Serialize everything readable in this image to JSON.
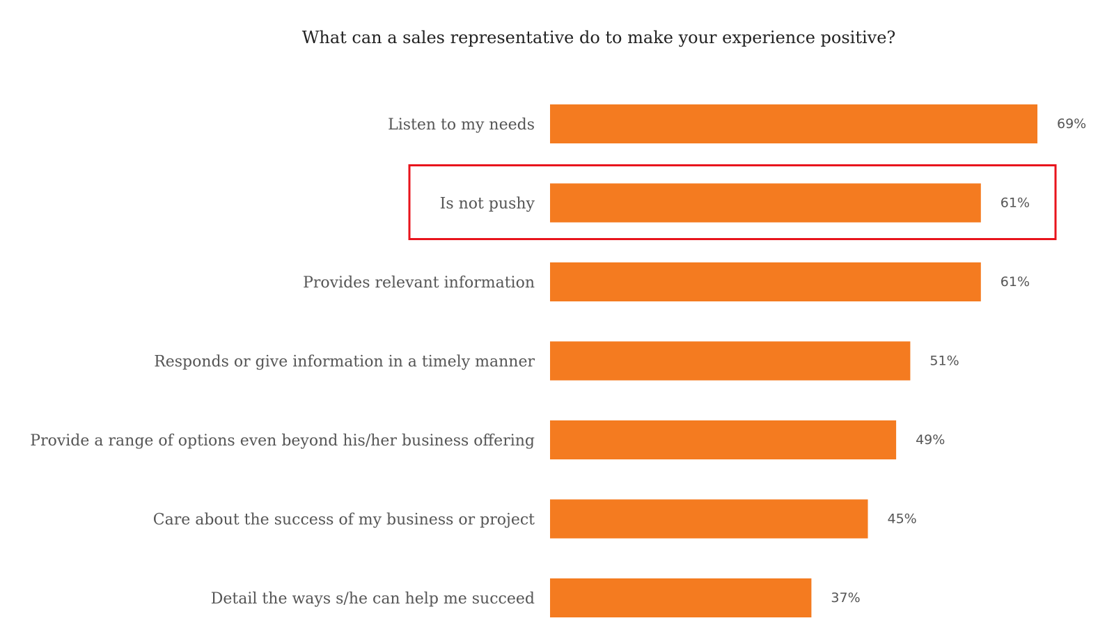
{
  "chart_data": {
    "type": "bar",
    "orientation": "horizontal",
    "title": "What can a sales representative do to make your experience positive?",
    "categories": [
      "Listen to my needs",
      "Is not pushy",
      "Provides relevant information",
      "Responds or give information in a timely manner",
      "Provide a range of options even beyond his/her business offering",
      "Care about the success of my business or project",
      "Detail the ways s/he can help me succeed"
    ],
    "values": [
      69,
      61,
      61,
      51,
      49,
      45,
      37
    ],
    "value_labels": [
      "69%",
      "61%",
      "61%",
      "51%",
      "49%",
      "45%",
      "37%"
    ],
    "unit": "%",
    "xlim": [
      0,
      69
    ],
    "grid": false,
    "legend": "none",
    "highlighted_category": "Is not pushy",
    "colors": {
      "bar": "#F47B20",
      "highlight_box": "#E8141C",
      "label_text": "#555555",
      "title_text": "#222222"
    }
  }
}
